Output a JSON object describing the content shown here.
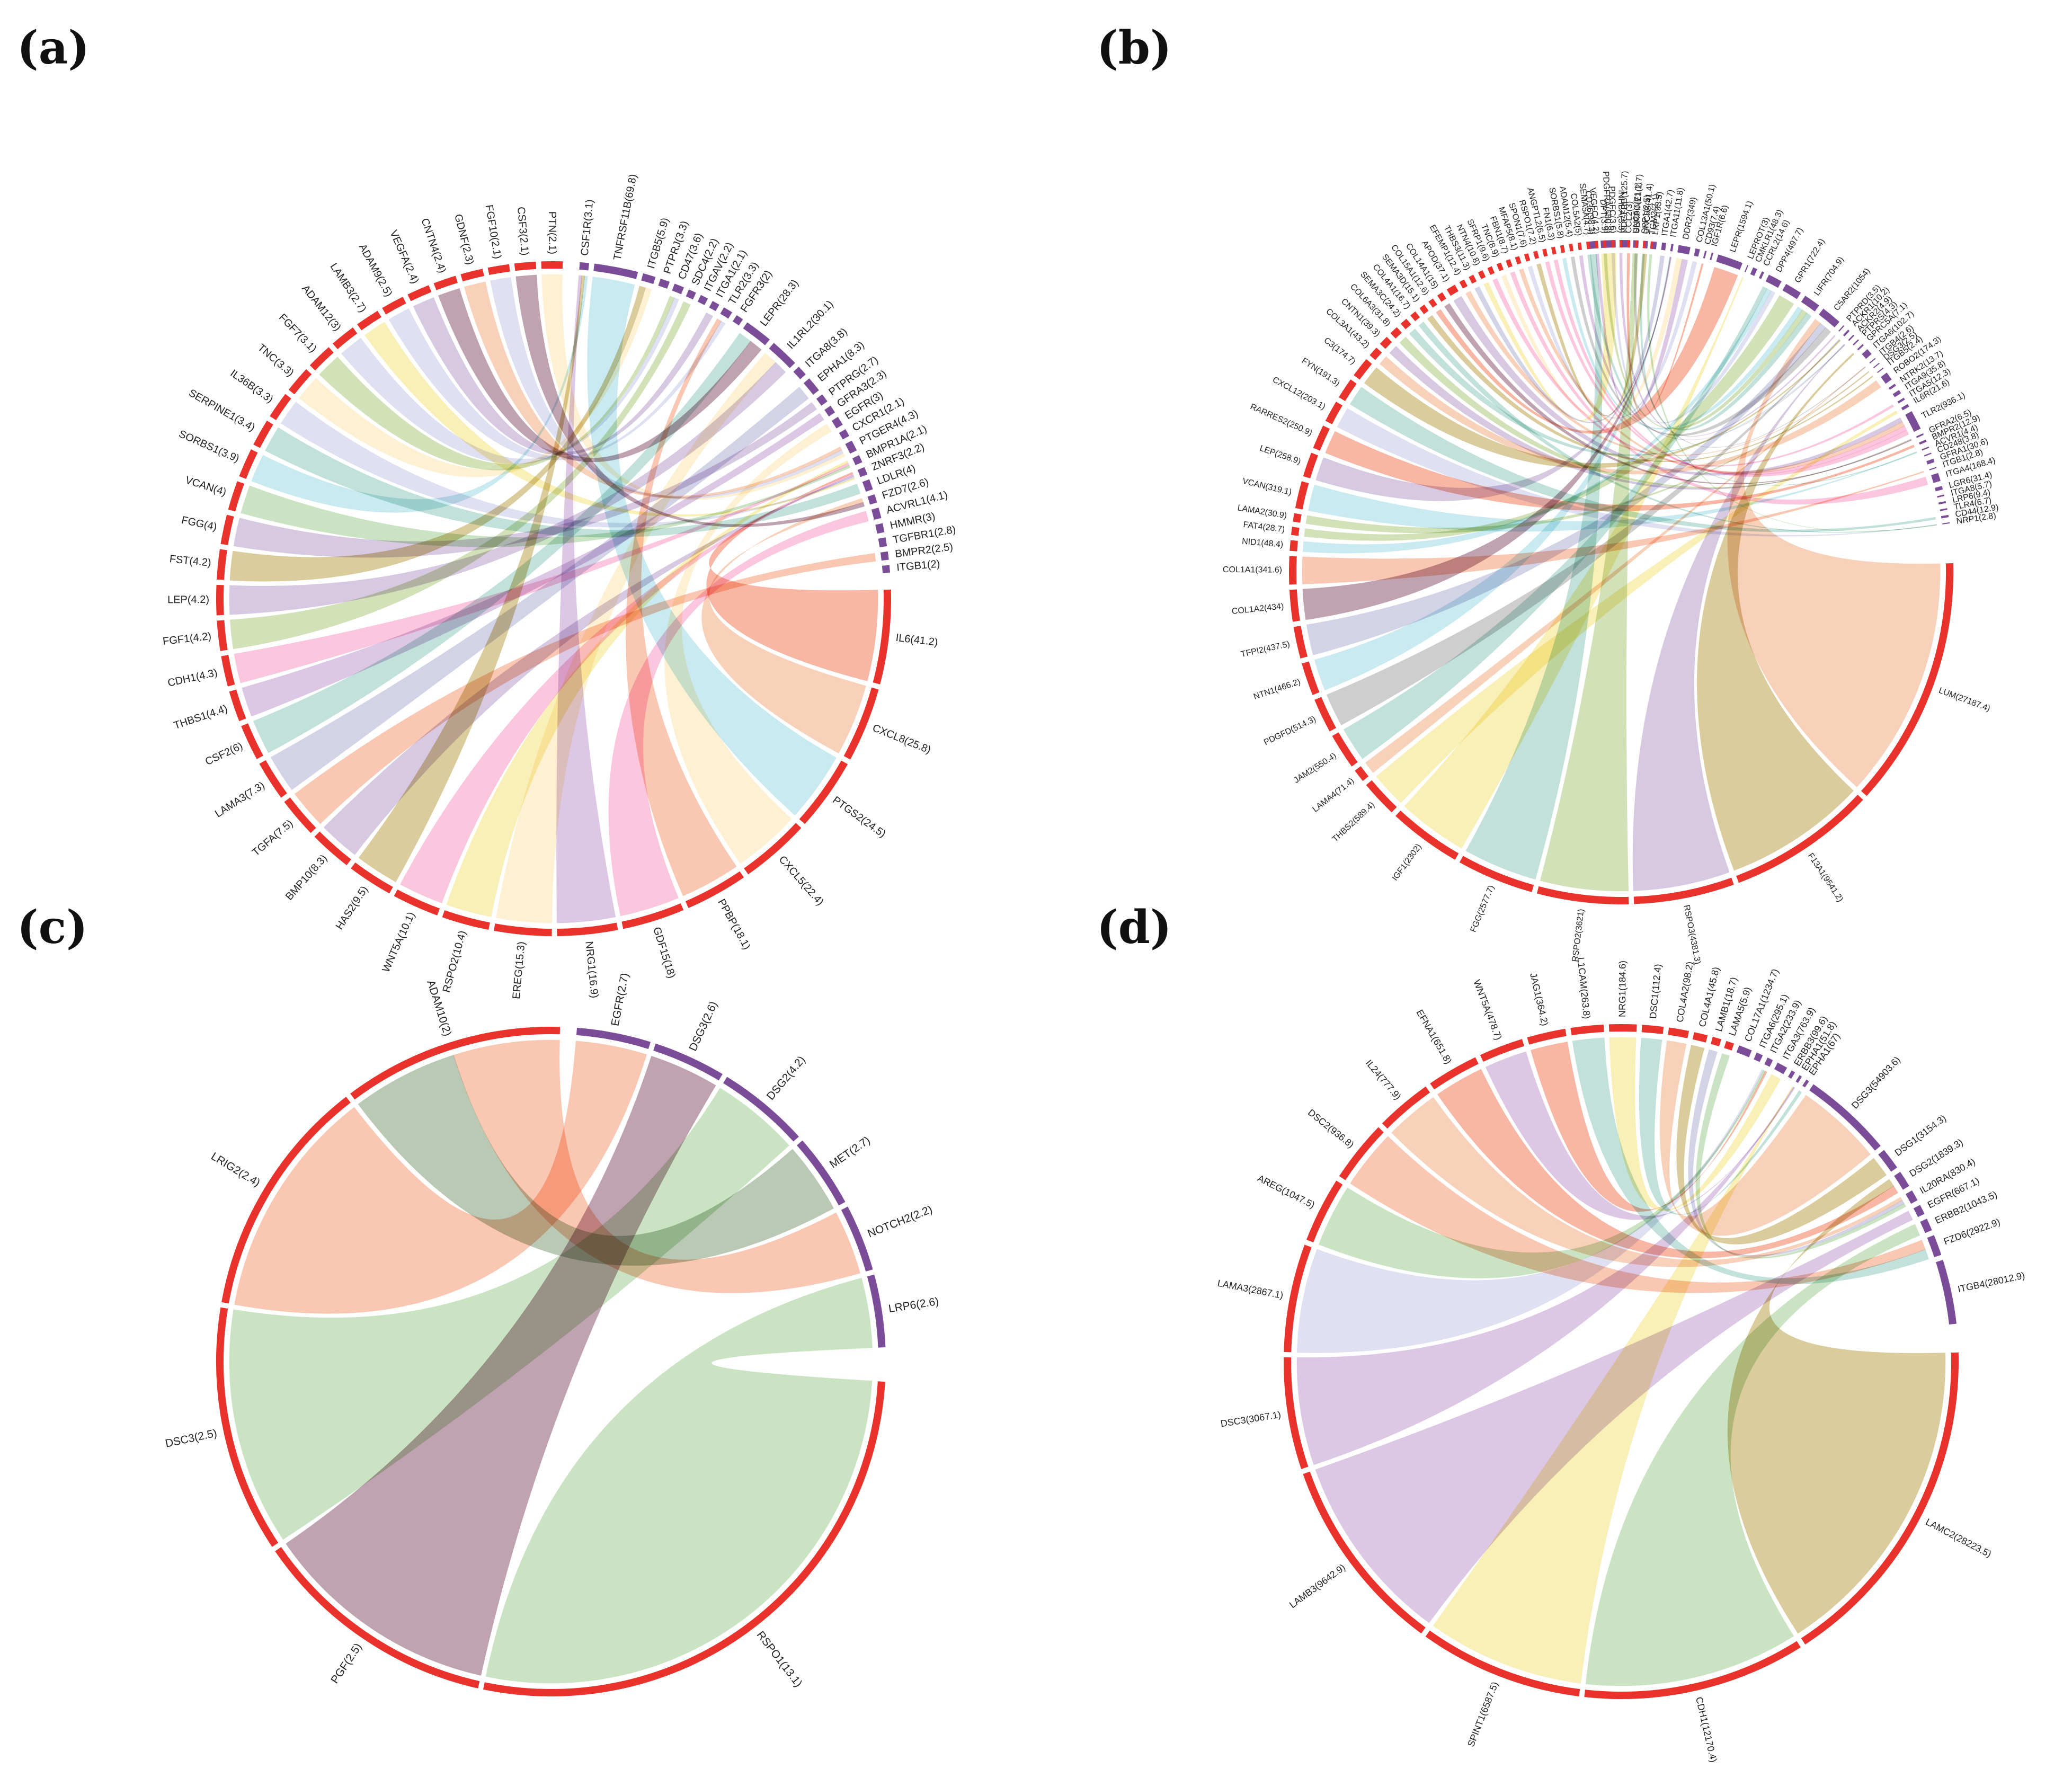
{
  "colors": {
    "receptor_arc": "#7b4c97",
    "ligand_arc": "#e8322b",
    "palette": [
      "#f7a583",
      "#c7a7d4",
      "#9a6b80",
      "#a9d39e",
      "#f9a3c9",
      "#cbcde8",
      "#fde9b8",
      "#b7cf8d",
      "#bfa8cf",
      "#f4b58f",
      "#c4ac5f",
      "#b8b8d8",
      "#f38b6c",
      "#f5e68a",
      "#a8dde6",
      "#9ccfc3",
      "#b0b0b0"
    ]
  },
  "chart_data": [
    {
      "id": "a",
      "panel_label": "(a)",
      "type": "chord",
      "receptors": [
        {
          "label": "CSF1R(3.1)",
          "value": 3.1
        },
        {
          "label": "TNFRSF11B(69.8)",
          "value": 69.8
        },
        {
          "label": "ITGB5(5.9)",
          "value": 5.9
        },
        {
          "label": "PTPRJ(3.3)",
          "value": 3.3
        },
        {
          "label": "CD47(3.6)",
          "value": 3.6
        },
        {
          "label": "SDC4(2.2)",
          "value": 2.2
        },
        {
          "label": "ITGAV(2.2)",
          "value": 2.2
        },
        {
          "label": "ITGA1(2.1)",
          "value": 2.1
        },
        {
          "label": "TLR2(3.3)",
          "value": 3.3
        },
        {
          "label": "FGFR3(2)",
          "value": 2
        },
        {
          "label": "LEPR(28.3)",
          "value": 28.3
        },
        {
          "label": "IL1RL2(30.1)",
          "value": 30.1
        },
        {
          "label": "ITGA8(3.8)",
          "value": 3.8
        },
        {
          "label": "EPHA1(8.3)",
          "value": 8.3
        },
        {
          "label": "PTPRG(2.7)",
          "value": 2.7
        },
        {
          "label": "GFRA3(2.3)",
          "value": 2.3
        },
        {
          "label": "EGFR(3)",
          "value": 3
        },
        {
          "label": "CXCR1(2.1)",
          "value": 2.1
        },
        {
          "label": "PTGER4(4.3)",
          "value": 4.3
        },
        {
          "label": "BMPR1A(2.1)",
          "value": 2.1
        },
        {
          "label": "ZNRF3(2.2)",
          "value": 2.2
        },
        {
          "label": "LDLR(4)",
          "value": 4
        },
        {
          "label": "FZD7(2.6)",
          "value": 2.6
        },
        {
          "label": "ACVRL1(4.1)",
          "value": 4.1
        },
        {
          "label": "HMMR(3)",
          "value": 3
        },
        {
          "label": "TGFBR1(2.8)",
          "value": 2.8
        },
        {
          "label": "BMPR2(2.5)",
          "value": 2.5
        },
        {
          "label": "ITGB1(2)",
          "value": 2
        }
      ],
      "ligands": [
        {
          "label": "IL6(41.2)",
          "value": 41.2
        },
        {
          "label": "CXCL8(25.8)",
          "value": 25.8
        },
        {
          "label": "PTGS2(24.5)",
          "value": 24.5
        },
        {
          "label": "CXCL5(22.4)",
          "value": 22.4
        },
        {
          "label": "PPBP(18.1)",
          "value": 18.1
        },
        {
          "label": "GDF15(18)",
          "value": 18
        },
        {
          "label": "NRG1(16.9)",
          "value": 16.9
        },
        {
          "label": "EREG(15.3)",
          "value": 15.3
        },
        {
          "label": "RSPO2(10.4)",
          "value": 10.4
        },
        {
          "label": "WNT5A(10.1)",
          "value": 10.1
        },
        {
          "label": "HAS2(9.5)",
          "value": 9.5
        },
        {
          "label": "BMP10(8.3)",
          "value": 8.3
        },
        {
          "label": "TGFA(7.5)",
          "value": 7.5
        },
        {
          "label": "LAMA3(7.3)",
          "value": 7.3
        },
        {
          "label": "CSF2(6)",
          "value": 6
        },
        {
          "label": "THBS1(4.4)",
          "value": 4.4
        },
        {
          "label": "CDH1(4.3)",
          "value": 4.3
        },
        {
          "label": "FGF1(4.2)",
          "value": 4.2
        },
        {
          "label": "LEP(4.2)",
          "value": 4.2
        },
        {
          "label": "FST(4.2)",
          "value": 4.2
        },
        {
          "label": "FGG(4)",
          "value": 4
        },
        {
          "label": "VCAN(4)",
          "value": 4
        },
        {
          "label": "SORBS1(3.9)",
          "value": 3.9
        },
        {
          "label": "SERPINE1(3.4)",
          "value": 3.4
        },
        {
          "label": "IL36B(3.3)",
          "value": 3.3
        },
        {
          "label": "TNC(3.3)",
          "value": 3.3
        },
        {
          "label": "FGF7(3.1)",
          "value": 3.1
        },
        {
          "label": "ADAM12(3)",
          "value": 3
        },
        {
          "label": "LAMB3(2.7)",
          "value": 2.7
        },
        {
          "label": "ADAM9(2.5)",
          "value": 2.5
        },
        {
          "label": "VEGFA(2.4)",
          "value": 2.4
        },
        {
          "label": "CNTN4(2.4)",
          "value": 2.4
        },
        {
          "label": "GDNF(2.3)",
          "value": 2.3
        },
        {
          "label": "FGF10(2.1)",
          "value": 2.1
        },
        {
          "label": "CSF3(2.1)",
          "value": 2.1
        },
        {
          "label": "PTN(2.1)",
          "value": 2.1
        }
      ]
    },
    {
      "id": "b",
      "panel_label": "(b)",
      "type": "chord",
      "receptors": [
        {
          "label": "CD36(98.3)",
          "value": 98.3
        },
        {
          "label": "PDGFRA(550.8)",
          "value": 550.8
        },
        {
          "label": "PDGFRB(125.7)",
          "value": 125.7
        },
        {
          "label": "UNC5C(71.1)",
          "value": 71.1
        },
        {
          "label": "UNC5B(41.4)",
          "value": 41.4
        },
        {
          "label": "LRP1(33.5)",
          "value": 33.5
        },
        {
          "label": "ITGA1(42.7)",
          "value": 42.7
        },
        {
          "label": "ITGA11(11.8)",
          "value": 11.8
        },
        {
          "label": "DDR2(349)",
          "value": 349
        },
        {
          "label": "COL13A1(50.1)",
          "value": 50.1
        },
        {
          "label": "CD93(7.4)",
          "value": 7.4
        },
        {
          "label": "IGF1R(6.6)",
          "value": 6.6
        },
        {
          "label": "LEPR(1594.1)",
          "value": 1594.1
        },
        {
          "label": "LEPROT(3)",
          "value": 3
        },
        {
          "label": "CMKLR1(48.3)",
          "value": 48.3
        },
        {
          "label": "CCRL2(14.6)",
          "value": 14.6
        },
        {
          "label": "DPP4(497.7)",
          "value": 497.7
        },
        {
          "label": "GPR1(722.4)",
          "value": 722.4
        },
        {
          "label": "LIFR(704.9)",
          "value": 704.9
        },
        {
          "label": "C5AR2(1054)",
          "value": 1054
        },
        {
          "label": "PTPRD(3.5)",
          "value": 3.5
        },
        {
          "label": "ACKR1(10.2)",
          "value": 10.2
        },
        {
          "label": "ACKR2(4.9)",
          "value": 4.9
        },
        {
          "label": "PTPRS(4.3)",
          "value": 4.3
        },
        {
          "label": "GPRC5A(7.1)",
          "value": 7.1
        },
        {
          "label": "ITGA6(102.7)",
          "value": 102.7
        },
        {
          "label": "ITGB4(2.6)",
          "value": 2.6
        },
        {
          "label": "DSG3(2.5)",
          "value": 2.5
        },
        {
          "label": "ITGB5(2.4)",
          "value": 2.4
        },
        {
          "label": "ROBO2(174.3)",
          "value": 174.3
        },
        {
          "label": "NTRK2(13.7)",
          "value": 13.7
        },
        {
          "label": "ITGA9(35.8)",
          "value": 35.8
        },
        {
          "label": "ITGA5(12.3)",
          "value": 12.3
        },
        {
          "label": "IL6R(21.6)",
          "value": 21.6
        },
        {
          "label": "TLR2(936.1)",
          "value": 936.1
        },
        {
          "label": "GFRA2(6.5)",
          "value": 6.5
        },
        {
          "label": "BMPR2(12.9)",
          "value": 12.9
        },
        {
          "label": "ACVR1(4.4)",
          "value": 4.4
        },
        {
          "label": "CD248(3.8)",
          "value": 3.8
        },
        {
          "label": "GFRA1(30.6)",
          "value": 30.6
        },
        {
          "label": "ITGB1(2.8)",
          "value": 2.8
        },
        {
          "label": "ITGA4(168.4)",
          "value": 168.4
        },
        {
          "label": "LGR6(31.4)",
          "value": 31.4
        },
        {
          "label": "ITGA8(5.7)",
          "value": 5.7
        },
        {
          "label": "LRP6(9.4)",
          "value": 9.4
        },
        {
          "label": "TLR4(6.7)",
          "value": 6.7
        },
        {
          "label": "CD44(12.9)",
          "value": 12.9
        },
        {
          "label": "NRP1(2.8)",
          "value": 2.8
        }
      ],
      "ligands": [
        {
          "label": "LUM(27187.4)",
          "value": 27187.4
        },
        {
          "label": "F13A1(9541.2)",
          "value": 9541.2
        },
        {
          "label": "RSPO3(4381.3)",
          "value": 4381.3
        },
        {
          "label": "RSPO2(3621)",
          "value": 3621
        },
        {
          "label": "FGG(2577.7)",
          "value": 2577.7
        },
        {
          "label": "IGF1(2302)",
          "value": 2302
        },
        {
          "label": "THBS2(589.4)",
          "value": 589.4
        },
        {
          "label": "LAMA4(71.4)",
          "value": 71.4
        },
        {
          "label": "JAM2(550.4)",
          "value": 550.4
        },
        {
          "label": "PDGFD(514.3)",
          "value": 514.3
        },
        {
          "label": "NTN1(466.2)",
          "value": 466.2
        },
        {
          "label": "TFPI2(437.5)",
          "value": 437.5
        },
        {
          "label": "COL1A2(434)",
          "value": 434
        },
        {
          "label": "COL1A1(341.6)",
          "value": 341.6
        },
        {
          "label": "NID1(48.4)",
          "value": 48.4
        },
        {
          "label": "FAT4(28.7)",
          "value": 28.7
        },
        {
          "label": "LAMA2(30.9)",
          "value": 30.9
        },
        {
          "label": "VCAN(319.1)",
          "value": 319.1
        },
        {
          "label": "LEP(258.9)",
          "value": 258.9
        },
        {
          "label": "RARRES2(250.9)",
          "value": 250.9
        },
        {
          "label": "CXCL12(203.1)",
          "value": 203.1
        },
        {
          "label": "FYN(191.3)",
          "value": 191.3
        },
        {
          "label": "C3(174.7)",
          "value": 174.7
        },
        {
          "label": "COL3A1(43.2)",
          "value": 43.2
        },
        {
          "label": "CNTN1(39.3)",
          "value": 39.3
        },
        {
          "label": "COL6A3(31.8)",
          "value": 31.8
        },
        {
          "label": "SEMA3C(24.2)",
          "value": 24.2
        },
        {
          "label": "COL4A1(16.7)",
          "value": 16.7
        },
        {
          "label": "SEMA3D(15.1)",
          "value": 15.1
        },
        {
          "label": "COL15A1(12.6)",
          "value": 12.6
        },
        {
          "label": "COL14A1(15)",
          "value": 15
        },
        {
          "label": "APOD(37.1)",
          "value": 37.1
        },
        {
          "label": "EFEMP1(12.4)",
          "value": 12.4
        },
        {
          "label": "THBS3(11.3)",
          "value": 11.3
        },
        {
          "label": "NTN4(10.8)",
          "value": 10.8
        },
        {
          "label": "SFRP1(9.6)",
          "value": 9.6
        },
        {
          "label": "TNC(8.9)",
          "value": 8.9
        },
        {
          "label": "FBN1(8.7)",
          "value": 8.7
        },
        {
          "label": "MFAP5(8.1)",
          "value": 8.1
        },
        {
          "label": "SPON1(7.6)",
          "value": 7.6
        },
        {
          "label": "RSPO1(7.2)",
          "value": 7.2
        },
        {
          "label": "ANGPTL2(6.5)",
          "value": 6.5
        },
        {
          "label": "FN1(6.3)",
          "value": 6.3
        },
        {
          "label": "SORBS1(5.8)",
          "value": 5.8
        },
        {
          "label": "ADAM12(5.4)",
          "value": 5.4
        },
        {
          "label": "COL5A2(5)",
          "value": 5
        },
        {
          "label": "SEMA5A(4.7)",
          "value": 4.7
        },
        {
          "label": "VEGFC(4.2)",
          "value": 4.2
        },
        {
          "label": "DPT(3.9)",
          "value": 3.9
        },
        {
          "label": "PDGFC(3.6)",
          "value": 3.6
        },
        {
          "label": "INHBA(3.3)",
          "value": 3.3
        },
        {
          "label": "CCL2(3)",
          "value": 3
        },
        {
          "label": "SERPINE1(2.7)",
          "value": 2.7
        },
        {
          "label": "SPP1(2.5)",
          "value": 2.5
        },
        {
          "label": "TGM2(2.1)",
          "value": 2.1
        }
      ]
    },
    {
      "id": "c",
      "panel_label": "(c)",
      "type": "chord",
      "receptors": [
        {
          "label": "EGFR(2.7)",
          "value": 2.7
        },
        {
          "label": "DSG3(2.6)",
          "value": 2.6
        },
        {
          "label": "DSG2(4.2)",
          "value": 4.2
        },
        {
          "label": "MET(2.7)",
          "value": 2.7
        },
        {
          "label": "NOTCH2(2.2)",
          "value": 2.2
        },
        {
          "label": "LRP6(2.6)",
          "value": 2.6
        }
      ],
      "ligands": [
        {
          "label": "RSPO1(13.1)",
          "value": 13.1
        },
        {
          "label": "PGF(2.5)",
          "value": 2.5
        },
        {
          "label": "DSC3(2.5)",
          "value": 2.5
        },
        {
          "label": "LRIG2(2.4)",
          "value": 2.4
        },
        {
          "label": "ADAM10(2)",
          "value": 2
        }
      ],
      "links": [
        {
          "ligand": "RSPO1(13.1)",
          "receptor": "LRP6(2.6)",
          "color": "#a9d39e"
        },
        {
          "ligand": "PGF(2.5)",
          "receptor": "DSG3(2.6)",
          "color": "#9a6b80"
        },
        {
          "ligand": "DSC3(2.5)",
          "receptor": "DSG2(4.2)",
          "color": "#a9d39e"
        },
        {
          "ligand": "LRIG2(2.4)",
          "receptor": "EGFR(2.7)",
          "color": "#f7a583"
        },
        {
          "ligand": "ADAM10(2)",
          "receptor": "MET(2.7)",
          "color": "#8fa886"
        },
        {
          "ligand": "ADAM10(2)",
          "receptor": "NOTCH2(2.2)",
          "color": "#f7a583"
        }
      ]
    },
    {
      "id": "d",
      "panel_label": "(d)",
      "type": "chord",
      "receptors": [
        {
          "label": "COL17A1(1234.7)",
          "value": 1234.7
        },
        {
          "label": "ITGA6(295.1)",
          "value": 295.1
        },
        {
          "label": "ITGA2(233.9)",
          "value": 233.9
        },
        {
          "label": "ITGA3(763.9)",
          "value": 763.9
        },
        {
          "label": "ERBB3(99.6)",
          "value": 99.6
        },
        {
          "label": "EPHA1(51.8)",
          "value": 51.8
        },
        {
          "label": "EPHA1(67)",
          "value": 67
        },
        {
          "label": "DSG3(54903.6)",
          "value": 54903.6
        },
        {
          "label": "DSG1(3154.3)",
          "value": 3154.3
        },
        {
          "label": "DSG2(1839.3)",
          "value": 1839.3
        },
        {
          "label": "IL20RA(830.4)",
          "value": 830.4
        },
        {
          "label": "EGFR(667.1)",
          "value": 667.1
        },
        {
          "label": "ERBB2(1043.5)",
          "value": 1043.5
        },
        {
          "label": "FZD6(2922.9)",
          "value": 2922.9
        },
        {
          "label": "ITGB4(28012.9)",
          "value": 28012.9
        }
      ],
      "ligands": [
        {
          "label": "LAMC2(28223.5)",
          "value": 28223.5
        },
        {
          "label": "CDH1(12170.4)",
          "value": 12170.4
        },
        {
          "label": "SPINT1(6587.5)",
          "value": 6587.5
        },
        {
          "label": "LAMB3(9642.9)",
          "value": 9642.9
        },
        {
          "label": "DSC3(3067.1)",
          "value": 3067.1
        },
        {
          "label": "LAMA3(2867.1)",
          "value": 2867.1
        },
        {
          "label": "AREG(1047.5)",
          "value": 1047.5
        },
        {
          "label": "DSC2(936.8)",
          "value": 936.8
        },
        {
          "label": "IL24(777.9)",
          "value": 777.9
        },
        {
          "label": "EFNA1(651.8)",
          "value": 651.8
        },
        {
          "label": "WNT5A(478.7)",
          "value": 478.7
        },
        {
          "label": "JAG1(364.2)",
          "value": 364.2
        },
        {
          "label": "L1CAM(263.8)",
          "value": 263.8
        },
        {
          "label": "NRG1(184.6)",
          "value": 184.6
        },
        {
          "label": "DSC1(112.4)",
          "value": 112.4
        },
        {
          "label": "COL4A2(98.2)",
          "value": 98.2
        },
        {
          "label": "COL4A1(45.8)",
          "value": 45.8
        },
        {
          "label": "LAMB1(18.7)",
          "value": 18.7
        },
        {
          "label": "LAMA5(5.9)",
          "value": 5.9
        }
      ]
    }
  ]
}
